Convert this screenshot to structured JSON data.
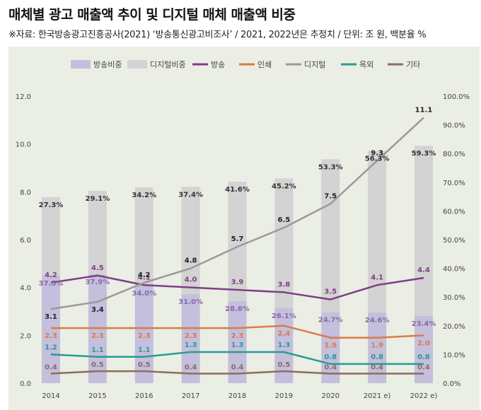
{
  "title": "매체별 광고 매출액 추이 및 디지털 매체 매출액 비중",
  "subtitle": "※자료: 한국방송광고진흥공사(2021) ‘방송통신광고비조사’ / 2021, 2022년은 추정치 / 단위: 조 원, 백분율 %",
  "chart_data": {
    "type": "bar",
    "categories": [
      "2014",
      "2015",
      "2016",
      "2017",
      "2018",
      "2019",
      "2020",
      "2021 e)",
      "2022 e)"
    ],
    "y_left": {
      "min": 0,
      "max": 12,
      "ticks": [
        "0.0",
        "2.0",
        "4.0",
        "6.0",
        "8.0",
        "10.0",
        "12.0"
      ]
    },
    "y_right": {
      "min": 0,
      "max": 100,
      "ticks": [
        "0.0%",
        "10.0%",
        "20.0%",
        "30.0%",
        "40.0%",
        "50.0%",
        "60.0%",
        "70.0%",
        "80.0%",
        "90.0%",
        "100.0%"
      ]
    },
    "bars": [
      {
        "name": "방송비중",
        "color": "#c3bfdc",
        "axis": "right",
        "values": [
          37.5,
          37.9,
          34.0,
          31.0,
          28.6,
          26.1,
          24.7,
          24.6,
          23.4
        ],
        "labels": [
          "37.5%",
          "37.9%",
          "34.0%",
          "31.0%",
          "28.6%",
          "26.1%",
          "24.7%",
          "24.6%",
          "23.4%"
        ]
      },
      {
        "name": "디지털비중",
        "color": "#d3d3d3",
        "axis": "right",
        "values": [
          27.3,
          29.1,
          34.2,
          37.4,
          41.6,
          45.2,
          53.3,
          56.3,
          59.3
        ],
        "labels": [
          "27.3%",
          "29.1%",
          "34.2%",
          "37.4%",
          "41.6%",
          "45.2%",
          "53.3%",
          "56.3%",
          "59.3%"
        ]
      }
    ],
    "lines": [
      {
        "name": "방송",
        "color": "#7e3f86",
        "axis": "left",
        "values": [
          4.2,
          4.5,
          4.1,
          4.0,
          3.9,
          3.8,
          3.5,
          4.1,
          4.4
        ],
        "labels": [
          "4.2",
          "4.5",
          "4.1",
          "4.0",
          "3.9",
          "3.8",
          "3.5",
          "4.1",
          "4.4"
        ]
      },
      {
        "name": "인쇄",
        "color": "#dc7a45",
        "axis": "left",
        "values": [
          2.3,
          2.3,
          2.3,
          2.3,
          2.3,
          2.4,
          1.9,
          1.9,
          2.0
        ],
        "labels": [
          "2.3",
          "2.3",
          "2.3",
          "2.3",
          "2.3",
          "2.4",
          "1.9",
          "1.9",
          "2.0"
        ]
      },
      {
        "name": "디지털",
        "color": "#9a9a9a",
        "axis": "left",
        "values": [
          3.1,
          3.4,
          4.2,
          4.8,
          5.7,
          6.5,
          7.5,
          9.3,
          11.1
        ],
        "labels": [
          "3.1",
          "3.4",
          "4.2",
          "4.8",
          "5.7",
          "6.5",
          "7.5",
          "9.3",
          "11.1"
        ]
      },
      {
        "name": "옥외",
        "color": "#2a9a98",
        "axis": "left",
        "values": [
          1.2,
          1.1,
          1.1,
          1.3,
          1.3,
          1.3,
          0.8,
          0.8,
          0.8
        ],
        "labels": [
          "1.2",
          "1.1",
          "1.1",
          "1.3",
          "1.3",
          "1.3",
          "0.8",
          "0.8",
          "0.8"
        ]
      },
      {
        "name": "기타",
        "color": "#8b6e5c",
        "axis": "left",
        "values": [
          0.4,
          0.5,
          0.5,
          0.4,
          0.4,
          0.5,
          0.4,
          0.4,
          0.4
        ],
        "labels": [
          "0.4",
          "0.5",
          "0.5",
          "0.4",
          "0.4",
          "0.5",
          "0.4",
          "0.4",
          "0.4"
        ]
      }
    ],
    "legend": [
      "방송비중",
      "디지털비중",
      "방송",
      "인쇄",
      "디지털",
      "옥외",
      "기타"
    ],
    "legend_position": "top"
  }
}
